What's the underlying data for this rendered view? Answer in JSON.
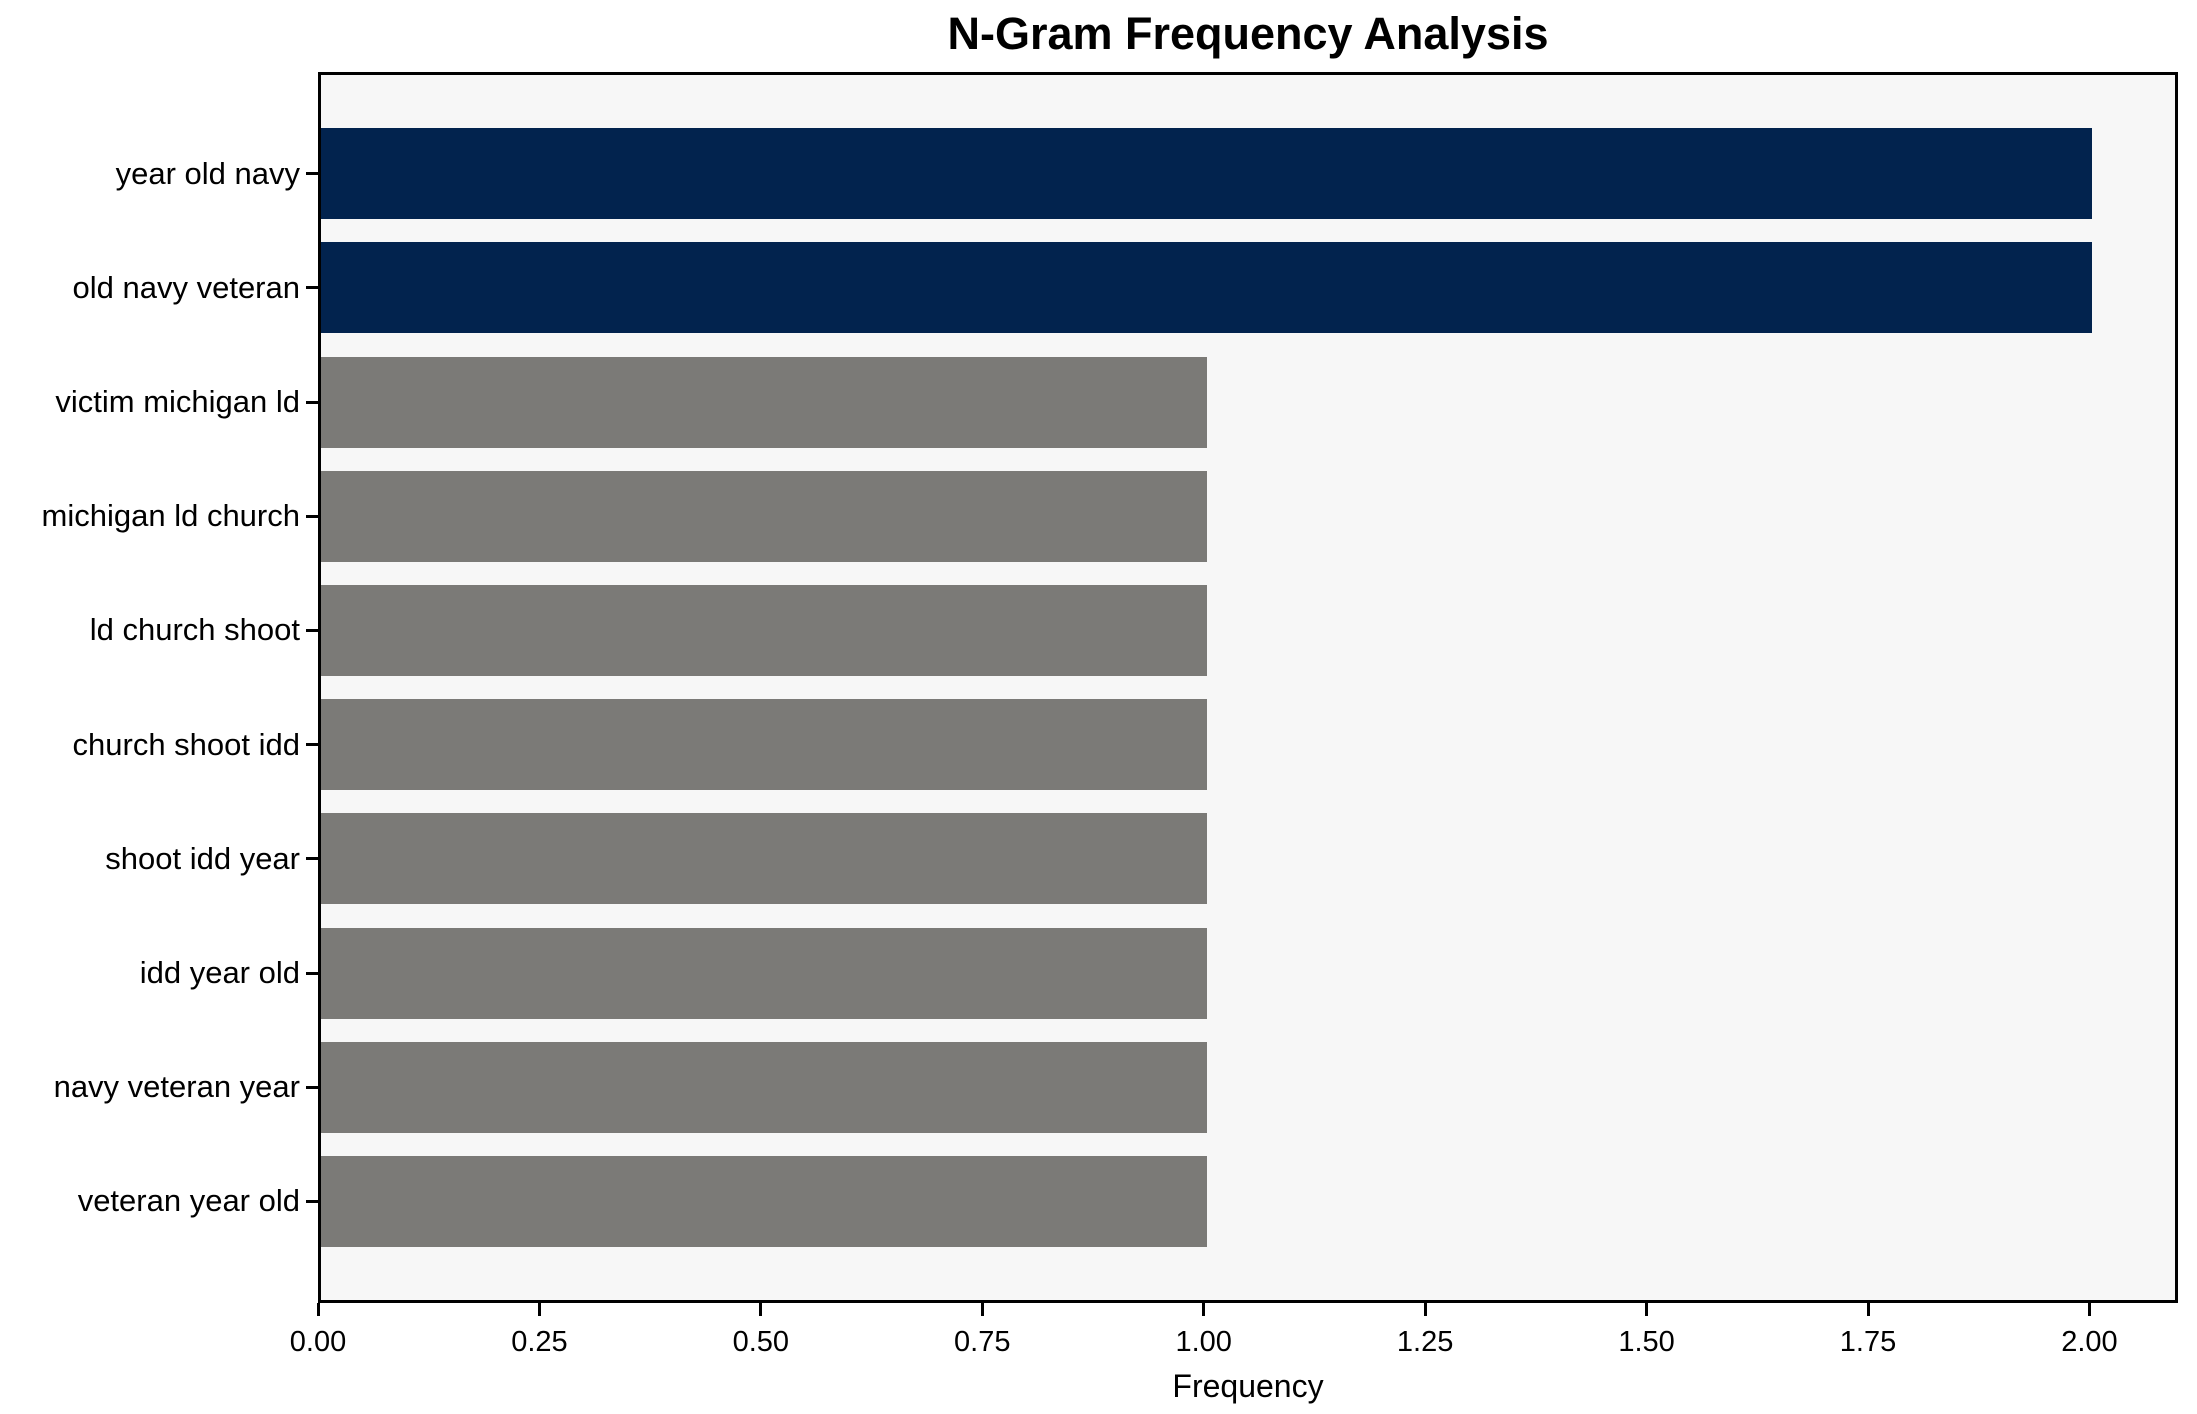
{
  "chart_data": {
    "type": "bar",
    "orientation": "horizontal",
    "title": "N-Gram Frequency Analysis",
    "xlabel": "Frequency",
    "ylabel": "",
    "categories": [
      "year old navy",
      "old navy veteran",
      "victim michigan ld",
      "michigan ld church",
      "ld church shoot",
      "church shoot idd",
      "shoot idd year",
      "idd year old",
      "navy veteran year",
      "veteran year old"
    ],
    "values": [
      2,
      2,
      1,
      1,
      1,
      1,
      1,
      1,
      1,
      1
    ],
    "bar_colors": [
      "#02234e",
      "#02234e",
      "#7b7a77",
      "#7b7a77",
      "#7b7a77",
      "#7b7a77",
      "#7b7a77",
      "#7b7a77",
      "#7b7a77",
      "#7b7a77"
    ],
    "highlight_color": "#02234e",
    "default_color": "#7b7a77",
    "xlim": [
      0,
      2.1
    ],
    "xticks": [
      "0.00",
      "0.25",
      "0.50",
      "0.75",
      "1.00",
      "1.25",
      "1.50",
      "1.75",
      "2.00"
    ],
    "xtick_values": [
      0.0,
      0.25,
      0.5,
      0.75,
      1.0,
      1.25,
      1.5,
      1.75,
      2.0
    ],
    "grid": false,
    "legend": null,
    "plot_background": "#f7f7f7",
    "figure_background": "#ffffff"
  }
}
